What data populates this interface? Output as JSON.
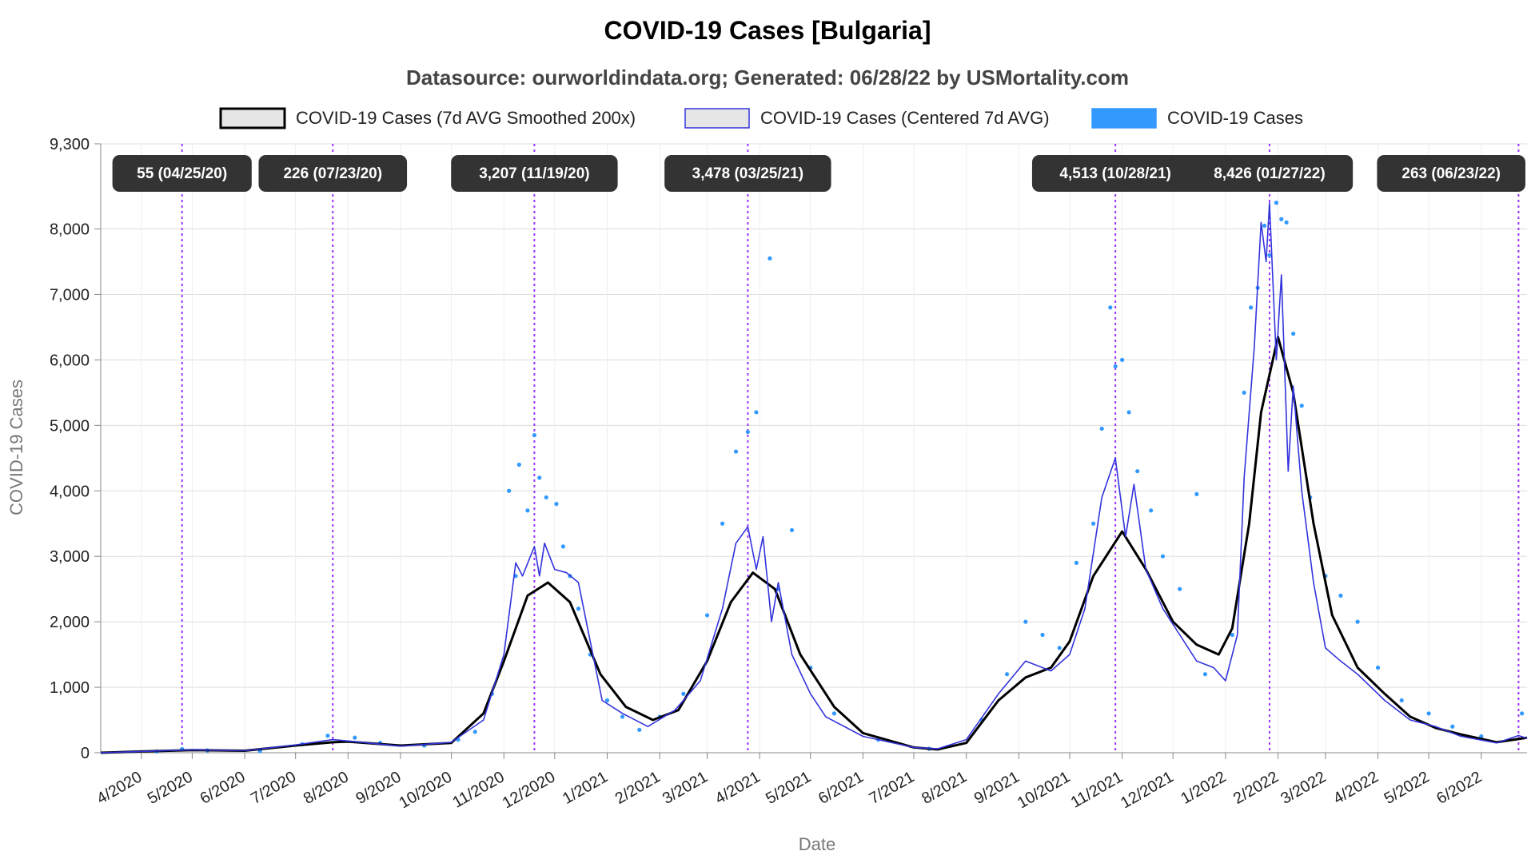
{
  "chart_data": {
    "type": "line",
    "title": "COVID-19 Cases [Bulgaria]",
    "subtitle": "Datasource: ourworldindata.org; Generated: 06/28/22 by USMortality.com",
    "xlabel": "Date",
    "ylabel": "COVID-19 Cases",
    "ylim": [
      0,
      9300
    ],
    "xlim": [
      "2020-03-08",
      "2022-06-28"
    ],
    "y_ticks": [
      "0",
      "1,000",
      "2,000",
      "3,000",
      "4,000",
      "5,000",
      "6,000",
      "7,000",
      "8,000",
      "9,300"
    ],
    "y_tick_values": [
      0,
      1000,
      2000,
      3000,
      4000,
      5000,
      6000,
      7000,
      8000,
      9300
    ],
    "x_ticks": [
      "4/2020",
      "5/2020",
      "6/2020",
      "7/2020",
      "8/2020",
      "9/2020",
      "10/2020",
      "11/2020",
      "12/2020",
      "1/2021",
      "2/2021",
      "3/2021",
      "4/2021",
      "5/2021",
      "6/2021",
      "7/2021",
      "8/2021",
      "9/2021",
      "10/2021",
      "11/2021",
      "12/2021",
      "1/2022",
      "2/2022",
      "3/2022",
      "4/2022",
      "5/2022",
      "6/2022"
    ],
    "x_tick_dates": [
      "2020-04-01",
      "2020-05-01",
      "2020-06-01",
      "2020-07-01",
      "2020-08-01",
      "2020-09-01",
      "2020-10-01",
      "2020-11-01",
      "2020-12-01",
      "2021-01-01",
      "2021-02-01",
      "2021-03-01",
      "2021-04-01",
      "2021-05-01",
      "2021-06-01",
      "2021-07-01",
      "2021-08-01",
      "2021-09-01",
      "2021-10-01",
      "2021-11-01",
      "2021-12-01",
      "2022-01-01",
      "2022-02-01",
      "2022-03-01",
      "2022-04-01",
      "2022-05-01",
      "2022-06-01"
    ],
    "grid": true,
    "legend_position": "top",
    "legend": [
      {
        "label": "COVID-19 Cases (7d AVG Smoothed 200x)",
        "color": "#000000",
        "fill": "#e6e6e6"
      },
      {
        "label": "COVID-19 Cases (Centered 7d AVG)",
        "color": "#3333dd",
        "fill": "#e6e6e6"
      },
      {
        "label": "COVID-19 Cases",
        "color": "#3399ff",
        "fill": "#3399ff"
      }
    ],
    "annotations": [
      {
        "label": "55 (04/25/20)",
        "date": "2020-04-25"
      },
      {
        "label": "226 (07/23/20)",
        "date": "2020-07-23"
      },
      {
        "label": "3,207 (11/19/20)",
        "date": "2020-11-19"
      },
      {
        "label": "3,478 (03/25/21)",
        "date": "2021-03-25"
      },
      {
        "label": "4,513 (10/28/21)",
        "date": "2021-10-28"
      },
      {
        "label": "8,426 (01/27/22)",
        "date": "2022-01-27"
      },
      {
        "label": "263 (06/23/22)",
        "date": "2022-06-23"
      }
    ],
    "series": [
      {
        "name": "COVID-19 Cases (7d AVG Smoothed 200x)",
        "color": "#000000",
        "points": [
          [
            "2020-03-08",
            0
          ],
          [
            "2020-04-01",
            20
          ],
          [
            "2020-05-01",
            40
          ],
          [
            "2020-06-01",
            30
          ],
          [
            "2020-07-01",
            110
          ],
          [
            "2020-07-23",
            160
          ],
          [
            "2020-08-01",
            170
          ],
          [
            "2020-09-01",
            110
          ],
          [
            "2020-10-01",
            150
          ],
          [
            "2020-10-20",
            600
          ],
          [
            "2020-11-01",
            1400
          ],
          [
            "2020-11-15",
            2400
          ],
          [
            "2020-11-27",
            2600
          ],
          [
            "2020-12-10",
            2300
          ],
          [
            "2020-12-28",
            1200
          ],
          [
            "2021-01-12",
            700
          ],
          [
            "2021-01-28",
            500
          ],
          [
            "2021-02-12",
            650
          ],
          [
            "2021-03-01",
            1400
          ],
          [
            "2021-03-15",
            2300
          ],
          [
            "2021-03-28",
            2750
          ],
          [
            "2021-04-10",
            2500
          ],
          [
            "2021-04-25",
            1500
          ],
          [
            "2021-05-15",
            700
          ],
          [
            "2021-06-01",
            300
          ],
          [
            "2021-07-01",
            80
          ],
          [
            "2021-07-15",
            50
          ],
          [
            "2021-08-01",
            150
          ],
          [
            "2021-08-20",
            800
          ],
          [
            "2021-09-05",
            1150
          ],
          [
            "2021-09-20",
            1300
          ],
          [
            "2021-10-01",
            1700
          ],
          [
            "2021-10-15",
            2700
          ],
          [
            "2021-11-01",
            3380
          ],
          [
            "2021-11-15",
            2800
          ],
          [
            "2021-12-01",
            2000
          ],
          [
            "2021-12-15",
            1650
          ],
          [
            "2021-12-28",
            1500
          ],
          [
            "2022-01-05",
            1900
          ],
          [
            "2022-01-15",
            3500
          ],
          [
            "2022-01-22",
            5200
          ],
          [
            "2022-02-01",
            6350
          ],
          [
            "2022-02-10",
            5500
          ],
          [
            "2022-02-22",
            3500
          ],
          [
            "2022-03-05",
            2100
          ],
          [
            "2022-03-20",
            1300
          ],
          [
            "2022-04-05",
            900
          ],
          [
            "2022-04-20",
            550
          ],
          [
            "2022-05-05",
            380
          ],
          [
            "2022-05-20",
            280
          ],
          [
            "2022-06-10",
            160
          ],
          [
            "2022-06-28",
            230
          ]
        ]
      },
      {
        "name": "COVID-19 Cases (Centered 7d AVG)",
        "color": "#3333dd",
        "points": [
          [
            "2020-03-08",
            0
          ],
          [
            "2020-04-01",
            20
          ],
          [
            "2020-05-01",
            45
          ],
          [
            "2020-06-01",
            30
          ],
          [
            "2020-07-01",
            120
          ],
          [
            "2020-07-23",
            200
          ],
          [
            "2020-08-01",
            180
          ],
          [
            "2020-09-01",
            100
          ],
          [
            "2020-10-01",
            160
          ],
          [
            "2020-10-20",
            500
          ],
          [
            "2020-11-01",
            1500
          ],
          [
            "2020-11-08",
            2900
          ],
          [
            "2020-11-12",
            2700
          ],
          [
            "2020-11-19",
            3150
          ],
          [
            "2020-11-22",
            2700
          ],
          [
            "2020-11-25",
            3200
          ],
          [
            "2020-12-01",
            2800
          ],
          [
            "2020-12-08",
            2750
          ],
          [
            "2020-12-15",
            2600
          ],
          [
            "2020-12-22",
            1700
          ],
          [
            "2020-12-29",
            800
          ],
          [
            "2021-01-10",
            600
          ],
          [
            "2021-01-25",
            400
          ],
          [
            "2021-02-10",
            650
          ],
          [
            "2021-02-25",
            1100
          ],
          [
            "2021-03-10",
            2200
          ],
          [
            "2021-03-18",
            3200
          ],
          [
            "2021-03-25",
            3450
          ],
          [
            "2021-03-30",
            2800
          ],
          [
            "2021-04-03",
            3300
          ],
          [
            "2021-04-08",
            2000
          ],
          [
            "2021-04-12",
            2600
          ],
          [
            "2021-04-20",
            1500
          ],
          [
            "2021-05-01",
            900
          ],
          [
            "2021-05-10",
            550
          ],
          [
            "2021-06-01",
            250
          ],
          [
            "2021-07-01",
            80
          ],
          [
            "2021-07-15",
            60
          ],
          [
            "2021-08-01",
            200
          ],
          [
            "2021-08-20",
            900
          ],
          [
            "2021-09-05",
            1400
          ],
          [
            "2021-09-20",
            1250
          ],
          [
            "2021-10-01",
            1500
          ],
          [
            "2021-10-10",
            2200
          ],
          [
            "2021-10-20",
            3900
          ],
          [
            "2021-10-28",
            4500
          ],
          [
            "2021-11-03",
            3300
          ],
          [
            "2021-11-08",
            4100
          ],
          [
            "2021-11-15",
            2800
          ],
          [
            "2021-11-25",
            2200
          ],
          [
            "2021-12-05",
            1800
          ],
          [
            "2021-12-15",
            1400
          ],
          [
            "2021-12-25",
            1300
          ],
          [
            "2022-01-01",
            1100
          ],
          [
            "2022-01-08",
            1800
          ],
          [
            "2022-01-12",
            4200
          ],
          [
            "2022-01-18",
            6200
          ],
          [
            "2022-01-22",
            8100
          ],
          [
            "2022-01-25",
            7500
          ],
          [
            "2022-01-27",
            8400
          ],
          [
            "2022-01-31",
            6000
          ],
          [
            "2022-02-03",
            7300
          ],
          [
            "2022-02-07",
            4300
          ],
          [
            "2022-02-10",
            5600
          ],
          [
            "2022-02-15",
            4000
          ],
          [
            "2022-02-22",
            2600
          ],
          [
            "2022-03-01",
            1600
          ],
          [
            "2022-03-10",
            1400
          ],
          [
            "2022-03-20",
            1200
          ],
          [
            "2022-04-05",
            800
          ],
          [
            "2022-04-20",
            500
          ],
          [
            "2022-05-05",
            400
          ],
          [
            "2022-05-20",
            250
          ],
          [
            "2022-06-10",
            150
          ],
          [
            "2022-06-23",
            263
          ],
          [
            "2022-06-28",
            220
          ]
        ]
      },
      {
        "name": "COVID-19 Cases",
        "color": "#3399ff",
        "points": [
          [
            "2020-04-10",
            20
          ],
          [
            "2020-04-25",
            55
          ],
          [
            "2020-05-10",
            35
          ],
          [
            "2020-06-10",
            25
          ],
          [
            "2020-07-05",
            130
          ],
          [
            "2020-07-20",
            260
          ],
          [
            "2020-08-05",
            230
          ],
          [
            "2020-08-20",
            150
          ],
          [
            "2020-09-15",
            110
          ],
          [
            "2020-10-05",
            200
          ],
          [
            "2020-10-15",
            320
          ],
          [
            "2020-10-25",
            900
          ],
          [
            "2020-11-04",
            4000
          ],
          [
            "2020-11-08",
            2700
          ],
          [
            "2020-11-10",
            4400
          ],
          [
            "2020-11-15",
            3700
          ],
          [
            "2020-11-19",
            4850
          ],
          [
            "2020-11-22",
            4200
          ],
          [
            "2020-11-26",
            3900
          ],
          [
            "2020-12-02",
            3800
          ],
          [
            "2020-12-06",
            3150
          ],
          [
            "2020-12-10",
            2700
          ],
          [
            "2020-12-15",
            2200
          ],
          [
            "2020-12-22",
            1500
          ],
          [
            "2021-01-01",
            800
          ],
          [
            "2021-01-10",
            550
          ],
          [
            "2021-01-20",
            350
          ],
          [
            "2021-02-01",
            550
          ],
          [
            "2021-02-15",
            900
          ],
          [
            "2021-03-01",
            2100
          ],
          [
            "2021-03-10",
            3500
          ],
          [
            "2021-03-18",
            4600
          ],
          [
            "2021-03-25",
            4900
          ],
          [
            "2021-03-30",
            5200
          ],
          [
            "2021-04-07",
            7550
          ],
          [
            "2021-04-12",
            2500
          ],
          [
            "2021-04-20",
            3400
          ],
          [
            "2021-05-01",
            1300
          ],
          [
            "2021-05-15",
            600
          ],
          [
            "2021-06-10",
            200
          ],
          [
            "2021-07-10",
            60
          ],
          [
            "2021-08-10",
            500
          ],
          [
            "2021-08-25",
            1200
          ],
          [
            "2021-09-05",
            2000
          ],
          [
            "2021-09-15",
            1800
          ],
          [
            "2021-09-25",
            1600
          ],
          [
            "2021-10-05",
            2900
          ],
          [
            "2021-10-15",
            3500
          ],
          [
            "2021-10-20",
            4950
          ],
          [
            "2021-10-25",
            6800
          ],
          [
            "2021-10-28",
            5900
          ],
          [
            "2021-11-01",
            6000
          ],
          [
            "2021-11-05",
            5200
          ],
          [
            "2021-11-10",
            4300
          ],
          [
            "2021-11-18",
            3700
          ],
          [
            "2021-11-25",
            3000
          ],
          [
            "2021-12-05",
            2500
          ],
          [
            "2021-12-15",
            3950
          ],
          [
            "2021-12-20",
            1200
          ],
          [
            "2022-01-05",
            1800
          ],
          [
            "2022-01-12",
            5500
          ],
          [
            "2022-01-16",
            6800
          ],
          [
            "2022-01-20",
            7100
          ],
          [
            "2022-01-24",
            8050
          ],
          [
            "2022-01-27",
            7600
          ],
          [
            "2022-01-31",
            8400
          ],
          [
            "2022-02-03",
            8150
          ],
          [
            "2022-02-06",
            8100
          ],
          [
            "2022-02-10",
            6400
          ],
          [
            "2022-02-15",
            5300
          ],
          [
            "2022-02-20",
            3900
          ],
          [
            "2022-03-01",
            2700
          ],
          [
            "2022-03-10",
            2400
          ],
          [
            "2022-03-20",
            2000
          ],
          [
            "2022-04-01",
            1300
          ],
          [
            "2022-04-15",
            800
          ],
          [
            "2022-05-01",
            600
          ],
          [
            "2022-05-15",
            400
          ],
          [
            "2022-06-01",
            250
          ],
          [
            "2022-06-25",
            600
          ]
        ]
      }
    ]
  }
}
